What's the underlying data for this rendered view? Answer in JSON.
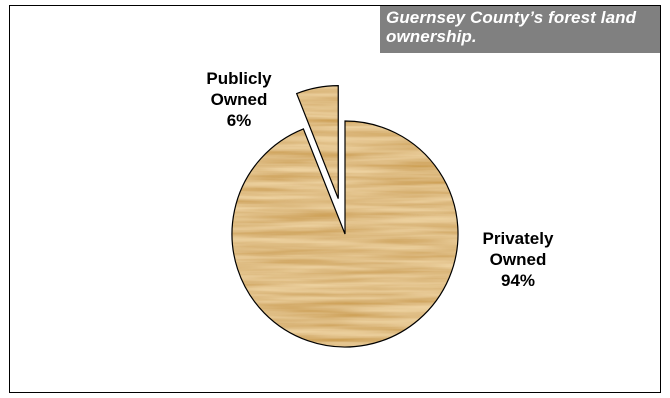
{
  "chart_data": {
    "type": "pie",
    "title": "Guernsey County’s forest land ownership.",
    "slices": [
      {
        "label_lines": [
          "Privately",
          "Owned",
          "94%"
        ],
        "value": 94
      },
      {
        "label_lines": [
          "Publicly",
          "Owned",
          "6%"
        ],
        "value": 6,
        "exploded": true
      }
    ],
    "legend": "none"
  },
  "colors": {
    "wood_base": "#caa262",
    "wood_light": "#e2c28c",
    "wood_dark": "#9b6f34",
    "title_bg": "#808080"
  }
}
